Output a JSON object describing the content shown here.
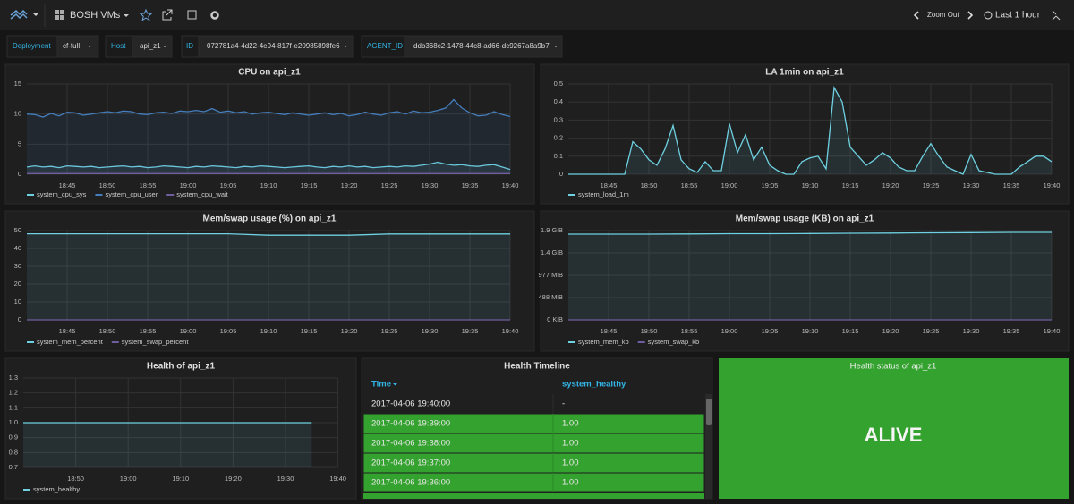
{
  "header": {
    "dashboard": "BOSH VMs",
    "zoom": "Zoom Out",
    "range": "Last 1 hour"
  },
  "variables": [
    {
      "label": "Deployment",
      "value": "cf-full"
    },
    {
      "label": "Host",
      "value": "api_z1"
    },
    {
      "label": "ID",
      "value": "072781a4-4d22-4e94-817f-e20985898fe6"
    },
    {
      "label": "AGENT_ID",
      "value": "ddb368c2-1478-44c8-ad66-dc9267a8a9b7"
    }
  ],
  "chart_data": [
    {
      "type": "line",
      "title": "CPU on api_z1",
      "categories": [
        null,
        null,
        null,
        null,
        null,
        "18:45",
        null,
        null,
        null,
        null,
        "18:50",
        null,
        null,
        null,
        null,
        "18:55",
        null,
        null,
        null,
        null,
        "19:00",
        null,
        null,
        null,
        null,
        "19:05",
        null,
        null,
        null,
        null,
        "19:10",
        null,
        null,
        null,
        null,
        "19:15",
        null,
        null,
        null,
        null,
        "19:20",
        null,
        null,
        null,
        null,
        "19:25",
        null,
        null,
        null,
        null,
        "19:30",
        null,
        null,
        null,
        null,
        "19:35",
        null,
        null,
        null,
        null,
        "19:40"
      ],
      "series": [
        {
          "name": "system_cpu_sys",
          "color": "#6ed0e0",
          "values": [
            1.2,
            1.4,
            1.2,
            1.3,
            1.1,
            1.4,
            1.3,
            1.2,
            1.3,
            1.1,
            1.2,
            1.3,
            1.4,
            1.2,
            1.3,
            1.1,
            1.2,
            1.4,
            1.3,
            1.2,
            1.1,
            1.3,
            1.2,
            1.4,
            1.3,
            1.2,
            1.1,
            1.3,
            1.2,
            1.4,
            1.3,
            1.2,
            1.1,
            1.2,
            1.3,
            1.4,
            1.2,
            1.1,
            1.3,
            1.2,
            1.4,
            1.2,
            1.3,
            1.1,
            1.2,
            1.3,
            1.2,
            1.4,
            1.3,
            1.5,
            1.7,
            2.0,
            1.7,
            1.5,
            1.6,
            1.4,
            1.3,
            1.5,
            1.6,
            1.2,
            0.8
          ]
        },
        {
          "name": "system_cpu_user",
          "color": "#447ebc",
          "values": [
            10.0,
            9.9,
            9.5,
            10.1,
            9.7,
            10.3,
            10.2,
            9.8,
            10.0,
            10.2,
            10.4,
            10.2,
            10.5,
            10.4,
            10.0,
            9.9,
            10.2,
            10.3,
            10.1,
            10.5,
            10.4,
            10.6,
            10.4,
            10.9,
            10.3,
            10.5,
            10.2,
            10.4,
            10.0,
            10.2,
            10.3,
            10.1,
            9.9,
            10.2,
            10.0,
            9.8,
            10.0,
            10.2,
            9.9,
            10.1,
            9.7,
            9.9,
            10.3,
            10.0,
            9.8,
            10.2,
            10.4,
            10.0,
            10.5,
            10.2,
            10.3,
            10.6,
            11.0,
            12.4,
            11.0,
            10.2,
            9.7,
            9.8,
            10.4,
            9.9,
            9.6
          ]
        },
        {
          "name": "system_cpu_wait",
          "color": "#705da0",
          "values": [
            0.1,
            0.1,
            0.1,
            0.1,
            0.1,
            0.1,
            0.1,
            0.1,
            0.1,
            0.1,
            0.1,
            0.1,
            0.1,
            0.1,
            0.1,
            0.1,
            0.1,
            0.1,
            0.1,
            0.1,
            0.1,
            0.1,
            0.1,
            0.1,
            0.1,
            0.1,
            0.1,
            0.1,
            0.1,
            0.1,
            0.1,
            0.1,
            0.1,
            0.1,
            0.1,
            0.1,
            0.1,
            0.1,
            0.1,
            0.1,
            0.1,
            0.1,
            0.1,
            0.1,
            0.1,
            0.1,
            0.1,
            0.1,
            0.1,
            0.1,
            0.1,
            0.1,
            0.1,
            0.1,
            0.1,
            0.1,
            0.1,
            0.1,
            0.1,
            0.1,
            0.1
          ]
        }
      ],
      "ylim": [
        0,
        15
      ],
      "yticks": [
        0,
        5,
        10,
        15
      ],
      "grid": true
    },
    {
      "type": "line",
      "title": "LA 1min on api_z1",
      "categories": [
        null,
        null,
        null,
        null,
        null,
        "18:45",
        null,
        null,
        null,
        null,
        "18:50",
        null,
        null,
        null,
        null,
        "18:55",
        null,
        null,
        null,
        null,
        "19:00",
        null,
        null,
        null,
        null,
        "19:05",
        null,
        null,
        null,
        null,
        "19:10",
        null,
        null,
        null,
        null,
        "19:15",
        null,
        null,
        null,
        null,
        "19:20",
        null,
        null,
        null,
        null,
        "19:25",
        null,
        null,
        null,
        null,
        "19:30",
        null,
        null,
        null,
        null,
        "19:35",
        null,
        null,
        null,
        null,
        "19:40"
      ],
      "series": [
        {
          "name": "system_load_1m",
          "color": "#6ed0e0",
          "values": [
            0,
            0,
            0,
            0,
            0,
            0,
            0,
            0,
            0.18,
            0.14,
            0.08,
            0.05,
            0.14,
            0.27,
            0.08,
            0.03,
            0.01,
            0.07,
            0.02,
            0.02,
            0.28,
            0.12,
            0.22,
            0.08,
            0.15,
            0.05,
            0.02,
            0,
            0,
            0.07,
            0.09,
            0.1,
            0.03,
            0.48,
            0.4,
            0.15,
            0.1,
            0.05,
            0.08,
            0.12,
            0.09,
            0.04,
            0.02,
            0.02,
            0.1,
            0.17,
            0.1,
            0.04,
            0.02,
            0,
            0.11,
            0.02,
            0.01,
            0,
            0,
            0,
            0.04,
            0.07,
            0.1,
            0.1,
            0.07
          ]
        }
      ],
      "ylim": [
        0,
        0.5
      ],
      "yticks": [
        0,
        0.1,
        0.2,
        0.3,
        0.4,
        0.5
      ],
      "grid": true
    },
    {
      "type": "line",
      "title": "Mem/swap usage (%) on api_z1",
      "categories": [
        null,
        "18:45",
        "18:50",
        "18:55",
        "19:00",
        "19:05",
        "19:10",
        "19:15",
        "19:20",
        "19:25",
        "19:30",
        "19:35",
        "19:40"
      ],
      "series": [
        {
          "name": "system_mem_percent",
          "color": "#6ed0e0",
          "values": [
            48.2,
            48.2,
            48.2,
            48.2,
            48.2,
            48.2,
            47.4,
            47.4,
            47.4,
            48.1,
            48.1,
            48.1,
            48.1
          ]
        },
        {
          "name": "system_swap_percent",
          "color": "#705da0",
          "values": [
            0,
            0,
            0,
            0,
            0,
            0,
            0,
            0,
            0,
            0,
            0,
            0,
            0
          ]
        }
      ],
      "ylim": [
        0,
        50
      ],
      "yticks": [
        0,
        10,
        20,
        30,
        40,
        50
      ],
      "grid": true
    },
    {
      "type": "line",
      "title": "Mem/swap usage (KB) on api_z1",
      "categories": [
        null,
        "18:45",
        "18:50",
        "18:55",
        "19:00",
        "19:05",
        "19:10",
        "19:15",
        "19:20",
        "19:25",
        "19:30",
        "19:35",
        "19:40"
      ],
      "series": [
        {
          "name": "system_mem_kb",
          "color": "#6ed0e0",
          "values": [
            1920000,
            1920000,
            1920000,
            1925000,
            1930000,
            1930000,
            1935000,
            1940000,
            1945000,
            1950000,
            1955000,
            1960000,
            1960000
          ]
        },
        {
          "name": "system_swap_kb",
          "color": "#705da0",
          "values": [
            0,
            0,
            0,
            0,
            0,
            0,
            0,
            0,
            0,
            0,
            0,
            0,
            0
          ]
        }
      ],
      "ylim": [
        0,
        2000000
      ],
      "yticks": [
        {
          "value": 0,
          "label": "0 KiB"
        },
        {
          "value": 500000,
          "label": "488 MiB"
        },
        {
          "value": 1000000,
          "label": "977 MiB"
        },
        {
          "value": 1500000,
          "label": "1.4 GiB"
        },
        {
          "value": 2000000,
          "label": "1.9 GiB"
        }
      ],
      "grid": true
    },
    {
      "type": "line",
      "title": "Health of api_z1",
      "categories": [
        null,
        null,
        "18:50",
        null,
        "19:00",
        null,
        "19:10",
        null,
        "19:20",
        null,
        "19:30",
        null,
        "19:40"
      ],
      "series": [
        {
          "name": "system_healthy",
          "color": "#6ed0e0",
          "values": [
            1,
            1,
            1,
            1,
            1,
            1,
            1,
            1,
            1,
            1,
            1,
            1,
            null
          ]
        }
      ],
      "ylim": [
        0.7,
        1.3
      ],
      "yticks": [
        0.7,
        0.8,
        0.9,
        {
          "value": 1,
          "label": "1.0"
        },
        1.1,
        1.2,
        1.3
      ],
      "grid": true
    }
  ],
  "table": {
    "title": "Health Timeline",
    "columns": [
      "Time",
      "system_healthy"
    ],
    "rows": [
      [
        "2017-04-06 19:40:00",
        "-"
      ],
      [
        "2017-04-06 19:39:00",
        "1.00"
      ],
      [
        "2017-04-06 19:38:00",
        "1.00"
      ],
      [
        "2017-04-06 19:37:00",
        "1.00"
      ],
      [
        "2017-04-06 19:36:00",
        "1.00"
      ]
    ]
  },
  "stat": {
    "title": "Health status of api_z1",
    "value": "ALIVE"
  }
}
